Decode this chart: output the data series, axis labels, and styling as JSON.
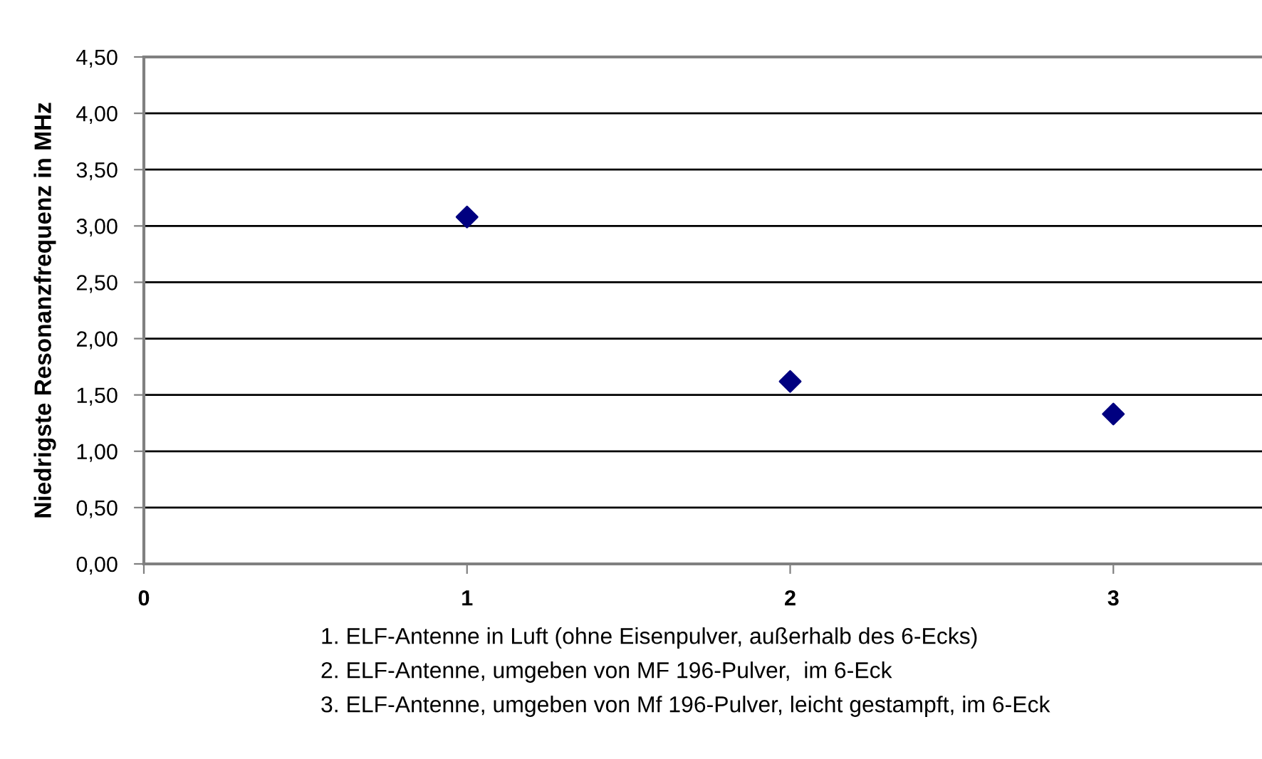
{
  "chart_data": {
    "type": "scatter",
    "ylabel": "Niedrigste Resonanzfrequenz in MHz",
    "x": [
      1,
      2,
      3
    ],
    "series": [
      {
        "color": "#000080",
        "values": [
          3.08,
          1.62,
          1.33
        ]
      }
    ],
    "marker": "diamond",
    "xlim": [
      0,
      3.46
    ],
    "xticks": [
      0,
      1,
      2,
      3
    ],
    "ylim": [
      0,
      4.5
    ],
    "yticks": [
      {
        "value": 0,
        "label": "0,00"
      },
      {
        "value": 0.5,
        "label": "0,50"
      },
      {
        "value": 1,
        "label": "1,00"
      },
      {
        "value": 1.5,
        "label": "1,50"
      },
      {
        "value": 2,
        "label": "2,00"
      },
      {
        "value": 2.5,
        "label": "2,50"
      },
      {
        "value": 3,
        "label": "3,00"
      },
      {
        "value": 3.5,
        "label": "3,50"
      },
      {
        "value": 4,
        "label": "4,00"
      },
      {
        "value": 4.5,
        "label": "4,50"
      }
    ],
    "grid": "y",
    "annotations": [
      "1. ELF-Antenne in Luft (ohne Eisenpulver, außerhalb des 6-Ecks)",
      "2. ELF-Antenne, umgeben von MF 196-Pulver,  im 6-Eck",
      "3. ELF-Antenne, umgeben von Mf 196-Pulver, leicht gestampft, im 6-Eck"
    ]
  }
}
